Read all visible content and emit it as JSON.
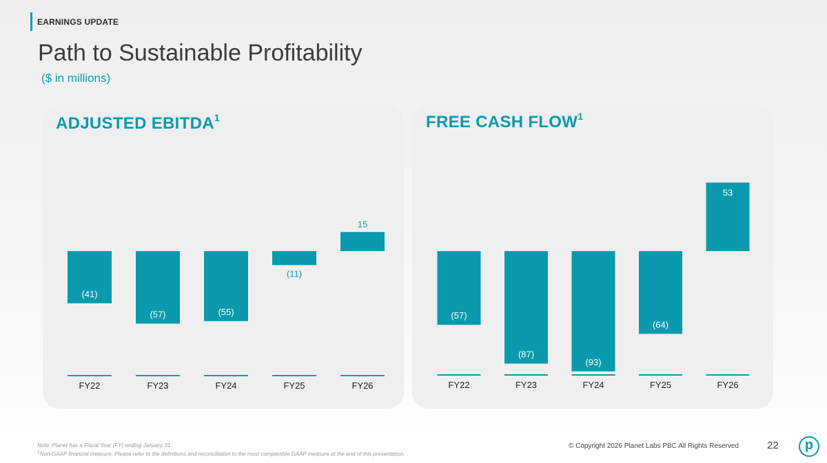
{
  "header": {
    "section_label": "EARNINGS UPDATE",
    "title": "Path to Sustainable Profitability",
    "subtitle": "($ in millions)"
  },
  "panels": [
    {
      "title": "ADJUSTED EBITDA",
      "title_superscript": "1"
    },
    {
      "title": "FREE CASH FLOW",
      "title_superscript": "1"
    }
  ],
  "chart_data": [
    {
      "type": "bar",
      "title": "ADJUSTED EBITDA",
      "categories": [
        "FY22",
        "FY23",
        "FY24",
        "FY25",
        "FY26"
      ],
      "values": [
        -41,
        -57,
        -55,
        -11,
        15
      ],
      "labels": [
        "(41)",
        "(57)",
        "(55)",
        "(11)",
        "15"
      ],
      "unit": "$ in millions",
      "grid": false
    },
    {
      "type": "bar",
      "title": "FREE CASH FLOW",
      "categories": [
        "FY22",
        "FY23",
        "FY24",
        "FY25",
        "FY26"
      ],
      "values": [
        -57,
        -87,
        -93,
        -64,
        53
      ],
      "labels": [
        "(57)",
        "(87)",
        "(93)",
        "(64)",
        "53"
      ],
      "unit": "$ in millions",
      "grid": false
    }
  ],
  "footer": {
    "note": "Note: Planet has a Fiscal Year (FY) ending January 31.",
    "footnote_marker": "1",
    "footnote": "Non-GAAP financial measure. Please refer to the definitions and reconciliation to the most comparable GAAP measure at the end of this presentation.",
    "copyright": "© Copyright 2026  Planet Labs PBC  All Rights Reserved",
    "page_number": "22",
    "logo_letter": "p"
  },
  "colors": {
    "accent": "#0b9aad",
    "title": "#3c3c3c",
    "footnote": "#9a9a9a"
  }
}
